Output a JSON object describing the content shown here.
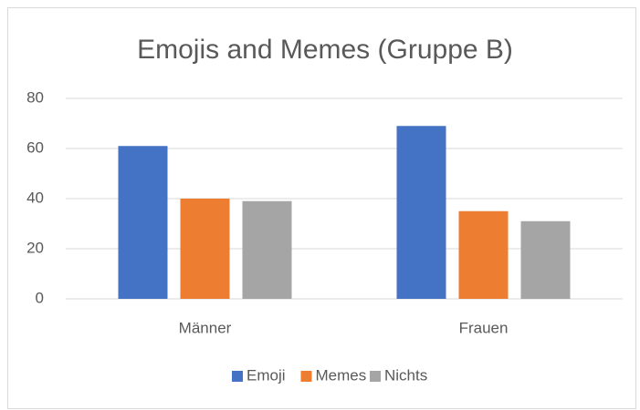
{
  "chart_data": {
    "type": "bar",
    "title": "Emojis and Memes (Gruppe B)",
    "categories": [
      "Männer",
      "Frauen"
    ],
    "series": [
      {
        "name": "Emoji",
        "color": "#4472c4",
        "values": [
          61,
          69
        ]
      },
      {
        "name": "Memes",
        "color": "#ed7d31",
        "values": [
          40,
          35
        ]
      },
      {
        "name": "Nichts",
        "color": "#a5a5a5",
        "values": [
          39,
          31
        ]
      }
    ],
    "ylim": [
      0,
      80
    ],
    "yticks": [
      0,
      20,
      40,
      60,
      80
    ],
    "grid": true,
    "legend": "bottom"
  }
}
